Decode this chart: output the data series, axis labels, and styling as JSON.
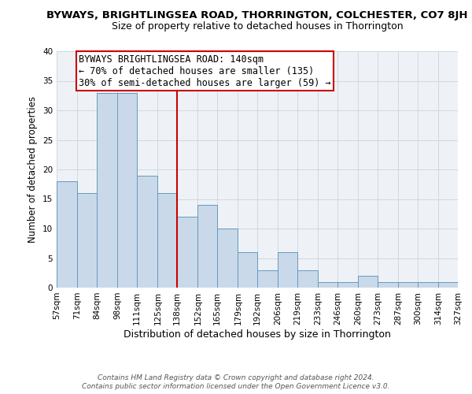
{
  "title": "BYWAYS, BRIGHTLINGSEA ROAD, THORRINGTON, COLCHESTER, CO7 8JH",
  "subtitle": "Size of property relative to detached houses in Thorrington",
  "xlabel": "Distribution of detached houses by size in Thorrington",
  "ylabel": "Number of detached properties",
  "bin_edges": [
    57,
    71,
    84,
    98,
    111,
    125,
    138,
    152,
    165,
    179,
    192,
    206,
    219,
    233,
    246,
    260,
    273,
    287,
    300,
    314,
    327
  ],
  "bin_counts": [
    18,
    16,
    33,
    33,
    19,
    16,
    12,
    14,
    10,
    6,
    3,
    6,
    3,
    1,
    1,
    2,
    1,
    1,
    1,
    1
  ],
  "bar_facecolor": "#c9d9ea",
  "bar_edgecolor": "#6699bb",
  "vline_x": 138,
  "vline_color": "#cc0000",
  "annotation_line1": "BYWAYS BRIGHTLINGSEA ROAD: 140sqm",
  "annotation_line2": "← 70% of detached houses are smaller (135)",
  "annotation_line3": "30% of semi-detached houses are larger (59) →",
  "annotation_box_edgecolor": "#cc0000",
  "annotation_box_facecolor": "white",
  "ylim": [
    0,
    40
  ],
  "yticks": [
    0,
    5,
    10,
    15,
    20,
    25,
    30,
    35,
    40
  ],
  "grid_color": "#d0d8e0",
  "background_color": "#eef2f7",
  "footer_line1": "Contains HM Land Registry data © Crown copyright and database right 2024.",
  "footer_line2": "Contains public sector information licensed under the Open Government Licence v3.0.",
  "title_fontsize": 9.5,
  "subtitle_fontsize": 9,
  "xlabel_fontsize": 9,
  "ylabel_fontsize": 8.5,
  "tick_label_fontsize": 7.5,
  "annotation_fontsize": 8.5,
  "footer_fontsize": 6.5
}
